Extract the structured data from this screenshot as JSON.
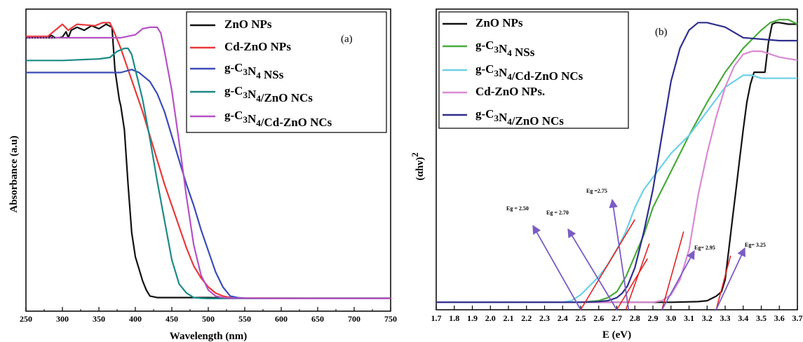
{
  "chart_data": [
    {
      "type": "line",
      "panel_label": "(a)",
      "xlabel": "Wavelength (nm)",
      "ylabel": "Absorbance (a.u)",
      "xlim": [
        250,
        750
      ],
      "xticks": [
        "250",
        "300",
        "350",
        "400",
        "450",
        "500",
        "550",
        "600",
        "650",
        "700",
        "750"
      ],
      "legend_position": "top-right",
      "series": [
        {
          "name": "ZnO NPs",
          "color": "#111111",
          "x": [
            250,
            262,
            280,
            285,
            290,
            295,
            300,
            305,
            308,
            312,
            320,
            330,
            340,
            350,
            360,
            368,
            372,
            375,
            378,
            380,
            385,
            390,
            395,
            400,
            405,
            410,
            415,
            420,
            430,
            450,
            500,
            550,
            600,
            700,
            750
          ],
          "y": [
            0.905,
            0.905,
            0.905,
            0.913,
            0.905,
            0.905,
            0.908,
            0.925,
            0.905,
            0.93,
            0.94,
            0.93,
            0.945,
            0.935,
            0.95,
            0.94,
            0.8,
            0.75,
            0.7,
            0.68,
            0.6,
            0.42,
            0.26,
            0.18,
            0.14,
            0.1,
            0.07,
            0.05,
            0.045,
            0.045,
            0.045,
            0.043,
            0.043,
            0.043,
            0.043
          ]
        },
        {
          "name": "Cd-ZnO NPs",
          "color": "#e8393a",
          "x": [
            250,
            280,
            300,
            308,
            320,
            345,
            355,
            365,
            370,
            380,
            390,
            400,
            410,
            420,
            430,
            440,
            450,
            460,
            470,
            480,
            490,
            500,
            510,
            520,
            530,
            550,
            600,
            700,
            750
          ],
          "y": [
            0.91,
            0.91,
            0.95,
            0.93,
            0.95,
            0.945,
            0.955,
            0.955,
            0.93,
            0.87,
            0.8,
            0.73,
            0.66,
            0.58,
            0.5,
            0.42,
            0.35,
            0.28,
            0.21,
            0.15,
            0.11,
            0.08,
            0.06,
            0.05,
            0.045,
            0.043,
            0.043,
            0.042,
            0.042
          ]
        },
        {
          "name": "g-C3N4 NSs",
          "color": "#3b4cb8",
          "x": [
            250,
            300,
            350,
            380,
            395,
            405,
            410,
            420,
            430,
            440,
            450,
            460,
            470,
            480,
            490,
            500,
            510,
            520,
            530,
            540,
            550,
            600,
            700,
            750
          ],
          "y": [
            0.79,
            0.79,
            0.79,
            0.79,
            0.8,
            0.79,
            0.78,
            0.76,
            0.72,
            0.66,
            0.58,
            0.5,
            0.42,
            0.35,
            0.27,
            0.2,
            0.13,
            0.08,
            0.05,
            0.045,
            0.043,
            0.042,
            0.042,
            0.042
          ]
        },
        {
          "name": "g-C3N4/ZnO NCs",
          "color": "#1c8a86",
          "x": [
            250,
            300,
            350,
            365,
            375,
            385,
            390,
            395,
            400,
            410,
            420,
            430,
            440,
            450,
            460,
            470,
            480,
            490,
            500,
            550,
            600,
            700,
            750
          ],
          "y": [
            0.83,
            0.83,
            0.835,
            0.84,
            0.86,
            0.87,
            0.87,
            0.85,
            0.8,
            0.7,
            0.57,
            0.43,
            0.3,
            0.17,
            0.09,
            0.06,
            0.045,
            0.043,
            0.042,
            0.042,
            0.042,
            0.042,
            0.042
          ]
        },
        {
          "name": "g-C3N4/Cd-ZnO NCs",
          "color": "#b452c4",
          "x": [
            250,
            300,
            350,
            380,
            400,
            410,
            420,
            430,
            435,
            440,
            450,
            460,
            470,
            480,
            490,
            500,
            510,
            520,
            530,
            550,
            600,
            700,
            750
          ],
          "y": [
            0.905,
            0.905,
            0.905,
            0.905,
            0.915,
            0.935,
            0.94,
            0.94,
            0.92,
            0.86,
            0.73,
            0.56,
            0.38,
            0.22,
            0.12,
            0.07,
            0.05,
            0.045,
            0.043,
            0.043,
            0.042,
            0.042,
            0.042
          ]
        }
      ]
    },
    {
      "type": "line",
      "panel_label": "(b)",
      "xlabel": "E (eV)",
      "ylabel": "(αhν)2",
      "xlim": [
        1.7,
        3.7
      ],
      "xticks": [
        "1.7",
        "1.8",
        "1.9",
        "2.0",
        "2.1",
        "2.2",
        "2.3",
        "2.4",
        "2.5",
        "2.6",
        "2.7",
        "2.8",
        "2.9",
        "3.0",
        "3.1",
        "3.2",
        "3.3",
        "3.4",
        "3.5",
        "3.6",
        "3.7"
      ],
      "legend_position": "top-left",
      "series": [
        {
          "name": "ZnO NPs",
          "color": "#111111",
          "x": [
            1.7,
            2.0,
            2.5,
            3.0,
            3.15,
            3.2,
            3.25,
            3.28,
            3.3,
            3.32,
            3.34,
            3.36,
            3.38,
            3.4,
            3.42,
            3.44,
            3.46,
            3.48,
            3.5,
            3.52,
            3.54,
            3.56,
            3.58,
            3.6,
            3.65,
            3.7
          ],
          "y": [
            0.025,
            0.025,
            0.025,
            0.025,
            0.027,
            0.03,
            0.045,
            0.06,
            0.1,
            0.2,
            0.3,
            0.4,
            0.5,
            0.6,
            0.69,
            0.75,
            0.79,
            0.79,
            0.79,
            0.79,
            0.89,
            0.95,
            0.955,
            0.955,
            0.95,
            0.95
          ]
        },
        {
          "name": "g-C3N4 NSs",
          "color": "#4aaa3c",
          "x": [
            1.7,
            2.5,
            2.6,
            2.65,
            2.7,
            2.75,
            2.8,
            2.85,
            2.9,
            3.0,
            3.1,
            3.2,
            3.3,
            3.4,
            3.5,
            3.55,
            3.6,
            3.65,
            3.7
          ],
          "y": [
            0.025,
            0.025,
            0.03,
            0.04,
            0.06,
            0.11,
            0.18,
            0.25,
            0.34,
            0.46,
            0.58,
            0.69,
            0.79,
            0.87,
            0.93,
            0.955,
            0.965,
            0.965,
            0.95
          ]
        },
        {
          "name": "g-C3N4/Cd-ZnO NCs",
          "color": "#6dcfe6",
          "x": [
            1.7,
            2.4,
            2.45,
            2.5,
            2.55,
            2.6,
            2.65,
            2.7,
            2.75,
            2.8,
            2.85,
            2.9,
            3.0,
            3.1,
            3.2,
            3.3,
            3.4,
            3.45,
            3.5,
            3.6,
            3.7
          ],
          "y": [
            0.025,
            0.025,
            0.03,
            0.05,
            0.08,
            0.11,
            0.15,
            0.2,
            0.26,
            0.34,
            0.4,
            0.44,
            0.52,
            0.58,
            0.66,
            0.74,
            0.78,
            0.78,
            0.77,
            0.77,
            0.77
          ]
        },
        {
          "name": "Cd-ZnO NPs.",
          "color": "#d98ad2",
          "x": [
            1.7,
            2.8,
            2.9,
            2.95,
            3.0,
            3.05,
            3.1,
            3.15,
            3.2,
            3.25,
            3.3,
            3.35,
            3.4,
            3.45,
            3.5,
            3.6,
            3.7
          ],
          "y": [
            0.025,
            0.025,
            0.025,
            0.03,
            0.05,
            0.1,
            0.2,
            0.38,
            0.52,
            0.64,
            0.74,
            0.81,
            0.85,
            0.86,
            0.86,
            0.84,
            0.83
          ]
        },
        {
          "name": "g-C3N4/ZnO NCs",
          "color": "#2e2f8c",
          "x": [
            1.7,
            2.5,
            2.6,
            2.65,
            2.7,
            2.73,
            2.76,
            2.8,
            2.85,
            2.9,
            2.95,
            3.0,
            3.05,
            3.1,
            3.15,
            3.2,
            3.3,
            3.4,
            3.5,
            3.6,
            3.7
          ],
          "y": [
            0.025,
            0.025,
            0.027,
            0.03,
            0.04,
            0.055,
            0.08,
            0.14,
            0.26,
            0.4,
            0.58,
            0.76,
            0.87,
            0.93,
            0.955,
            0.955,
            0.94,
            0.905,
            0.9,
            0.895,
            0.895
          ]
        }
      ],
      "annotations": [
        {
          "text": "Eg = 2.50",
          "x": 2.5
        },
        {
          "text": "Eg = 2.70",
          "x": 2.7
        },
        {
          "text": "Eg =2.75",
          "x": 2.75
        },
        {
          "text": "Eg= 2.95",
          "x": 2.95
        },
        {
          "text": "Eg= 3.25",
          "x": 3.25
        }
      ]
    }
  ]
}
